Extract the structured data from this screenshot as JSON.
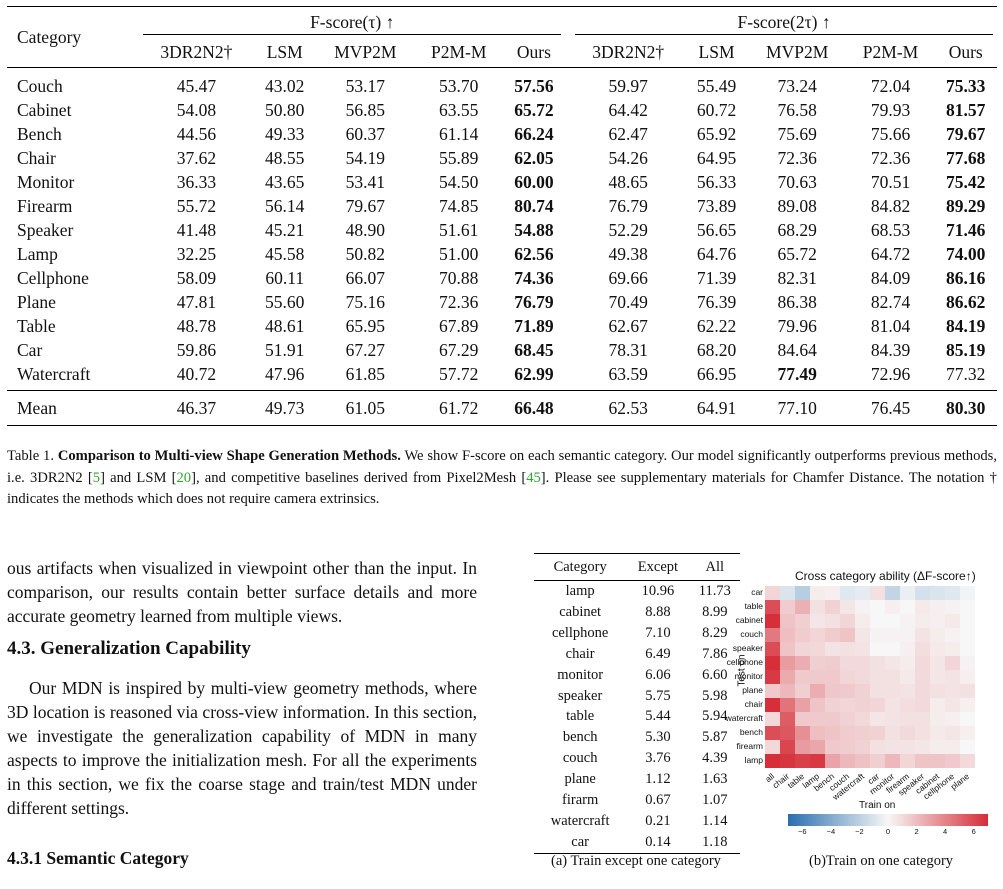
{
  "table1": {
    "col_category": "Category",
    "group1": "F-score(τ) ↑",
    "group2": "F-score(2τ) ↑",
    "methods": [
      "3DR2N2†",
      "LSM",
      "MVP2M",
      "P2M-M",
      "Ours"
    ],
    "rows": [
      {
        "cat": "Couch",
        "v": [
          "45.47",
          "43.02",
          "53.17",
          "53.70",
          "57.56",
          "59.97",
          "55.49",
          "73.24",
          "72.04",
          "75.33"
        ],
        "bold": [
          4,
          9
        ]
      },
      {
        "cat": "Cabinet",
        "v": [
          "54.08",
          "50.80",
          "56.85",
          "63.55",
          "65.72",
          "64.42",
          "60.72",
          "76.58",
          "79.93",
          "81.57"
        ],
        "bold": [
          4,
          9
        ]
      },
      {
        "cat": "Bench",
        "v": [
          "44.56",
          "49.33",
          "60.37",
          "61.14",
          "66.24",
          "62.47",
          "65.92",
          "75.69",
          "75.66",
          "79.67"
        ],
        "bold": [
          4,
          9
        ]
      },
      {
        "cat": "Chair",
        "v": [
          "37.62",
          "48.55",
          "54.19",
          "55.89",
          "62.05",
          "54.26",
          "64.95",
          "72.36",
          "72.36",
          "77.68"
        ],
        "bold": [
          4,
          9
        ]
      },
      {
        "cat": "Monitor",
        "v": [
          "36.33",
          "43.65",
          "53.41",
          "54.50",
          "60.00",
          "48.65",
          "56.33",
          "70.63",
          "70.51",
          "75.42"
        ],
        "bold": [
          4,
          9
        ]
      },
      {
        "cat": "Firearm",
        "v": [
          "55.72",
          "56.14",
          "79.67",
          "74.85",
          "80.74",
          "76.79",
          "73.89",
          "89.08",
          "84.82",
          "89.29"
        ],
        "bold": [
          4,
          9
        ]
      },
      {
        "cat": "Speaker",
        "v": [
          "41.48",
          "45.21",
          "48.90",
          "51.61",
          "54.88",
          "52.29",
          "56.65",
          "68.29",
          "68.53",
          "71.46"
        ],
        "bold": [
          4,
          9
        ]
      },
      {
        "cat": "Lamp",
        "v": [
          "32.25",
          "45.58",
          "50.82",
          "51.00",
          "62.56",
          "49.38",
          "64.76",
          "65.72",
          "64.72",
          "74.00"
        ],
        "bold": [
          4,
          9
        ]
      },
      {
        "cat": "Cellphone",
        "v": [
          "58.09",
          "60.11",
          "66.07",
          "70.88",
          "74.36",
          "69.66",
          "71.39",
          "82.31",
          "84.09",
          "86.16"
        ],
        "bold": [
          4,
          9
        ]
      },
      {
        "cat": "Plane",
        "v": [
          "47.81",
          "55.60",
          "75.16",
          "72.36",
          "76.79",
          "70.49",
          "76.39",
          "86.38",
          "82.74",
          "86.62"
        ],
        "bold": [
          4,
          9
        ]
      },
      {
        "cat": "Table",
        "v": [
          "48.78",
          "48.61",
          "65.95",
          "67.89",
          "71.89",
          "62.67",
          "62.22",
          "79.96",
          "81.04",
          "84.19"
        ],
        "bold": [
          4,
          9
        ]
      },
      {
        "cat": "Car",
        "v": [
          "59.86",
          "51.91",
          "67.27",
          "67.29",
          "68.45",
          "78.31",
          "68.20",
          "84.64",
          "84.39",
          "85.19"
        ],
        "bold": [
          4,
          9
        ]
      },
      {
        "cat": "Watercraft",
        "v": [
          "40.72",
          "47.96",
          "61.85",
          "57.72",
          "62.99",
          "63.59",
          "66.95",
          "77.49",
          "72.96",
          "77.32"
        ],
        "bold": [
          4,
          7
        ]
      }
    ],
    "mean": {
      "cat": "Mean",
      "v": [
        "46.37",
        "49.73",
        "61.05",
        "61.72",
        "66.48",
        "62.53",
        "64.91",
        "77.10",
        "76.45",
        "80.30"
      ],
      "bold": [
        4,
        9
      ]
    }
  },
  "caption": {
    "label": "Table 1.",
    "bold": "Comparison to Multi-view Shape Generation Methods.",
    "t1": " We show F-score on each semantic category. Our model significantly outperforms previous methods, i.e. 3DR2N2 [",
    "c1": "5",
    "t2": "] and LSM [",
    "c2": "20",
    "t3": "], and competitive baselines derived from Pixel2Mesh [",
    "c3": "45",
    "t4": "]. Please see supplementary materials for Chamfer Distance. The notation † indicates the methods which does not require camera extrinsics."
  },
  "para1": "ous artifacts when visualized in viewpoint other than the input. In comparison, our results contain better surface details and more accurate geometry learned from multiple views.",
  "section_title": "4.3. Generalization Capability",
  "para2": "Our MDN is inspired by multi-view geometry methods, where 3D location is reasoned via cross-view information. In this section, we investigate the generalization capability of MDN in many aspects to improve the initialization mesh. For all the experiments in this section, we fix the coarse stage and train/test MDN under different settings.",
  "subsection_title": "4.3.1   Semantic Category",
  "table2": {
    "headers": [
      "Category",
      "Except",
      "All"
    ],
    "rows": [
      [
        "lamp",
        "10.96",
        "11.73"
      ],
      [
        "cabinet",
        "8.88",
        "8.99"
      ],
      [
        "cellphone",
        "7.10",
        "8.29"
      ],
      [
        "chair",
        "6.49",
        "7.86"
      ],
      [
        "monitor",
        "6.06",
        "6.60"
      ],
      [
        "speaker",
        "5.75",
        "5.98"
      ],
      [
        "table",
        "5.44",
        "5.94"
      ],
      [
        "bench",
        "5.30",
        "5.87"
      ],
      [
        "couch",
        "3.76",
        "4.39"
      ],
      [
        "plane",
        "1.12",
        "1.63"
      ],
      [
        "firarm",
        "0.67",
        "1.07"
      ],
      [
        "watercraft",
        "0.21",
        "1.14"
      ],
      [
        "car",
        "0.14",
        "1.18"
      ]
    ],
    "caption": "(a) Train except one category"
  },
  "heatmap": {
    "title": "Cross category ability (ΔF-score↑)",
    "y_title": "Test on",
    "x_title": "Train on",
    "y_labels": [
      "car",
      "table",
      "cabinet",
      "couch",
      "speaker",
      "cellphone",
      "monitor",
      "plane",
      "chair",
      "watercraft",
      "bench",
      "firearm",
      "lamp"
    ],
    "x_labels": [
      "all",
      "chair",
      "table",
      "lamp",
      "bench",
      "couch",
      "watercraft",
      "car",
      "monitor",
      "firearm",
      "speaker",
      "cabinet",
      "cellphone",
      "plane"
    ],
    "colorbar_ticks": [
      "−6",
      "−4",
      "−2",
      "0",
      "2",
      "4",
      "6"
    ],
    "caption": "(b)Train on one category"
  },
  "chart_data": {
    "type": "heatmap",
    "title": "Cross category ability (ΔF-score↑)",
    "xlabel": "Train on",
    "ylabel": "Test on",
    "x": [
      "all",
      "chair",
      "table",
      "lamp",
      "bench",
      "couch",
      "watercraft",
      "car",
      "monitor",
      "firearm",
      "speaker",
      "cabinet",
      "cellphone",
      "plane"
    ],
    "y": [
      "car",
      "table",
      "cabinet",
      "couch",
      "speaker",
      "cellphone",
      "monitor",
      "plane",
      "chair",
      "watercraft",
      "bench",
      "firearm",
      "lamp"
    ],
    "values": [
      [
        1.2,
        -1.0,
        -2.2,
        0.4,
        0.3,
        -0.8,
        -0.6,
        0.8,
        -1.8,
        -0.4,
        -1.2,
        -1.0,
        -0.8,
        -0.2
      ],
      [
        5.9,
        1.5,
        2.5,
        0.8,
        1.3,
        0.6,
        0.2,
        0.0,
        0.3,
        0.0,
        0.5,
        0.3,
        0.2,
        0.0
      ],
      [
        9.0,
        1.8,
        1.4,
        0.6,
        0.8,
        1.2,
        0.4,
        0.0,
        0.0,
        0.2,
        0.4,
        0.3,
        0.5,
        0.0
      ],
      [
        4.4,
        2.0,
        1.5,
        1.2,
        1.5,
        1.8,
        0.6,
        0.2,
        0.2,
        0.2,
        0.7,
        0.4,
        0.2,
        0.0
      ],
      [
        6.0,
        1.8,
        1.2,
        1.1,
        0.7,
        0.8,
        0.7,
        0.0,
        0.0,
        0.3,
        0.9,
        0.5,
        0.4,
        0.0
      ],
      [
        8.3,
        3.2,
        2.6,
        1.4,
        1.5,
        1.0,
        1.0,
        0.8,
        0.6,
        0.4,
        1.0,
        0.6,
        1.2,
        0.2
      ],
      [
        6.6,
        2.7,
        1.6,
        1.6,
        1.6,
        1.2,
        1.0,
        0.8,
        0.8,
        0.5,
        1.0,
        0.6,
        0.7,
        0.3
      ],
      [
        1.6,
        2.2,
        1.4,
        2.6,
        1.7,
        1.6,
        1.3,
        0.8,
        0.8,
        0.7,
        1.0,
        0.8,
        0.7,
        0.8
      ],
      [
        7.9,
        4.6,
        3.0,
        1.8,
        1.3,
        1.2,
        1.3,
        1.2,
        0.7,
        0.9,
        1.0,
        0.4,
        0.6,
        0.3
      ],
      [
        1.1,
        5.4,
        1.6,
        1.6,
        1.6,
        1.3,
        1.1,
        0.6,
        0.7,
        0.8,
        0.8,
        0.4,
        0.3,
        0.0
      ],
      [
        5.9,
        5.6,
        3.6,
        2.0,
        1.8,
        1.5,
        1.4,
        1.3,
        0.8,
        1.0,
        0.8,
        0.5,
        0.6,
        0.3
      ],
      [
        1.1,
        6.2,
        3.2,
        2.8,
        1.6,
        1.5,
        1.3,
        0.8,
        0.7,
        0.7,
        0.6,
        0.4,
        0.4,
        0.0
      ],
      [
        11.7,
        6.8,
        6.4,
        6.6,
        2.9,
        2.2,
        1.9,
        1.4,
        2.2,
        1.2,
        1.8,
        1.8,
        1.6,
        1.0
      ]
    ],
    "colorbar_range": [
      -7,
      7
    ]
  }
}
